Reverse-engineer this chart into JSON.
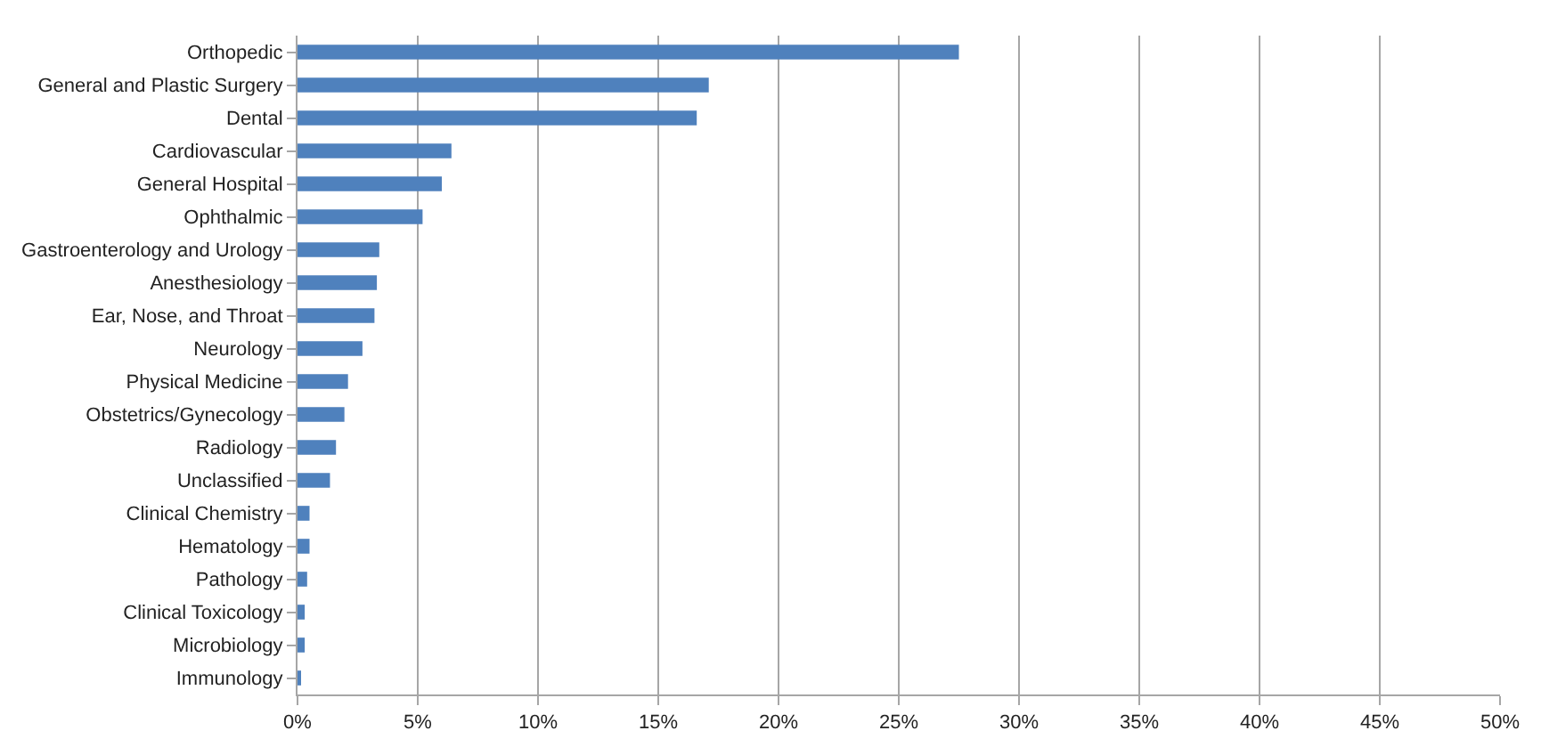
{
  "chart_data": {
    "type": "bar",
    "orientation": "horizontal",
    "categories": [
      "Orthopedic",
      "General and Plastic Surgery",
      "Dental",
      "Cardiovascular",
      "General Hospital",
      "Ophthalmic",
      "Gastroenterology and Urology",
      "Anesthesiology",
      "Ear, Nose, and Throat",
      "Neurology",
      "Physical Medicine",
      "Obstetrics/Gynecology",
      "Radiology",
      "Unclassified",
      "Clinical Chemistry",
      "Hematology",
      "Pathology",
      "Clinical Toxicology",
      "Microbiology",
      "Immunology"
    ],
    "values": [
      27.5,
      17.1,
      16.6,
      6.4,
      6.0,
      5.2,
      3.4,
      3.3,
      3.2,
      2.7,
      2.1,
      1.95,
      1.6,
      1.35,
      0.5,
      0.5,
      0.4,
      0.3,
      0.3,
      0.1
    ],
    "color": "#4f81bd",
    "xlim": [
      0,
      50
    ],
    "xticks": [
      {
        "value": 0,
        "label": "0%"
      },
      {
        "value": 5,
        "label": "5%"
      },
      {
        "value": 10,
        "label": "10%"
      },
      {
        "value": 15,
        "label": "15%"
      },
      {
        "value": 20,
        "label": "20%"
      },
      {
        "value": 25,
        "label": "25%"
      },
      {
        "value": 30,
        "label": "30%"
      },
      {
        "value": 35,
        "label": "35%"
      },
      {
        "value": 40,
        "label": "40%"
      },
      {
        "value": 45,
        "label": "45%"
      },
      {
        "value": 50,
        "label": "50%"
      }
    ],
    "grid": "x",
    "legend": false
  }
}
